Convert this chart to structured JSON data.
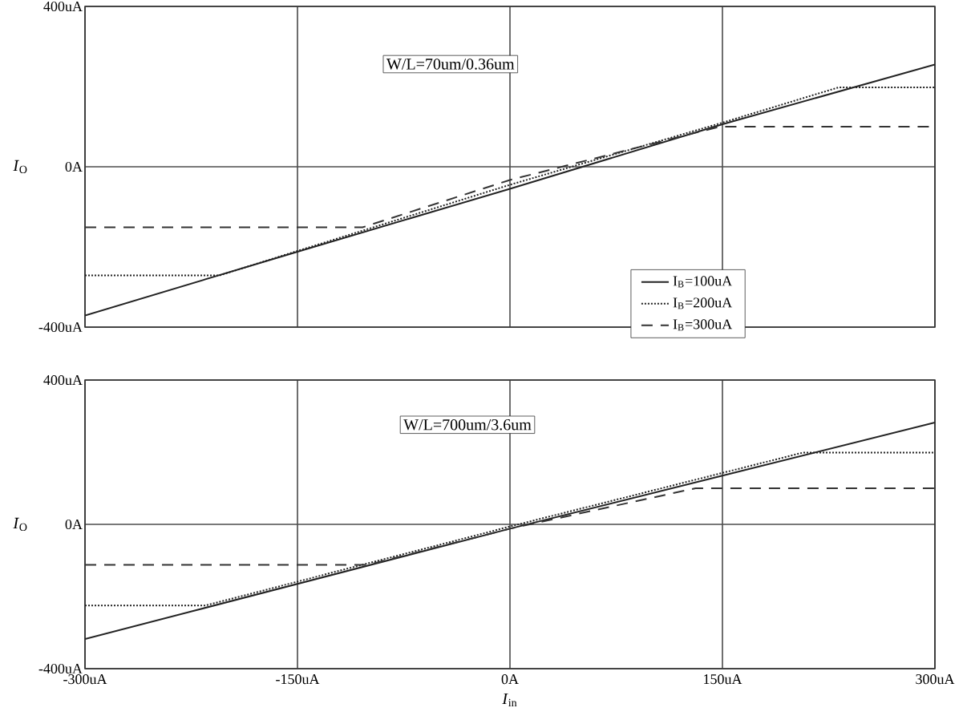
{
  "chart_data": [
    {
      "type": "line",
      "annotations": [
        "W/L=70um/0.36um"
      ],
      "ylabel": "*I*$_{O}$",
      "xlim": [
        -300,
        300
      ],
      "xticks": [
        -300,
        -150,
        0,
        150,
        300
      ],
      "ylim": [
        -400,
        400
      ],
      "yticks": [
        {
          "value": -400,
          "label": "-400uA"
        },
        {
          "value": 0,
          "label": "0A"
        },
        {
          "value": 400,
          "label": "400uA"
        }
      ],
      "tick_labels": "y",
      "grid": true,
      "legend": "bottom right",
      "series": [
        {
          "name": "I$_{B}$=100uA",
          "color": "#222222",
          "line_style": "solid",
          "x": [
            -300,
            -150,
            0,
            150,
            300
          ],
          "values": [
            -371,
            -212,
            -55,
            106,
            255
          ]
        },
        {
          "name": "I$_{B}$=200uA",
          "color": "#222222",
          "line_style": "dotted",
          "x": [
            -300,
            -205,
            -150,
            0,
            150,
            232,
            300
          ],
          "values": [
            -271,
            -271,
            -210,
            -45,
            110,
            198,
            198
          ]
        },
        {
          "name": "I$_{B}$=300uA",
          "color": "#333333",
          "line_style": "dashed",
          "x": [
            -300,
            -104,
            0,
            148,
            300
          ],
          "values": [
            -151,
            -151,
            -33,
            100,
            100
          ]
        }
      ]
    },
    {
      "type": "line",
      "annotations": [
        "W/L=700um/3.6um"
      ],
      "ylabel": "*I*$_{O}$",
      "xlabel": "*I*$_{in}$",
      "xlim": [
        -300,
        300
      ],
      "xticks": [
        {
          "value": -300,
          "label": "-300uA"
        },
        {
          "value": -150,
          "label": "-150uA"
        },
        {
          "value": 0,
          "label": "0A"
        },
        {
          "value": 150,
          "label": "150uA"
        },
        {
          "value": 300,
          "label": "300uA"
        }
      ],
      "ylim": [
        -400,
        400
      ],
      "yticks": [
        {
          "value": -400,
          "label": "-400uA"
        },
        {
          "value": 0,
          "label": "0A"
        },
        {
          "value": 400,
          "label": "400uA"
        }
      ],
      "grid": true,
      "series": [
        {
          "color": "#222222",
          "line_style": "solid",
          "x": [
            -300,
            -150,
            0,
            150,
            300
          ],
          "values": [
            -318,
            -165,
            -12,
            135,
            282
          ]
        },
        {
          "color": "#222222",
          "line_style": "dotted",
          "x": [
            -300,
            -215,
            0,
            207,
            300
          ],
          "values": [
            -225,
            -225,
            -6,
            199,
            199
          ]
        },
        {
          "color": "#333333",
          "line_style": "dashed",
          "x": [
            -300,
            -100,
            0,
            131,
            300
          ],
          "values": [
            -112,
            -112,
            -12,
            100,
            100
          ]
        }
      ]
    }
  ]
}
